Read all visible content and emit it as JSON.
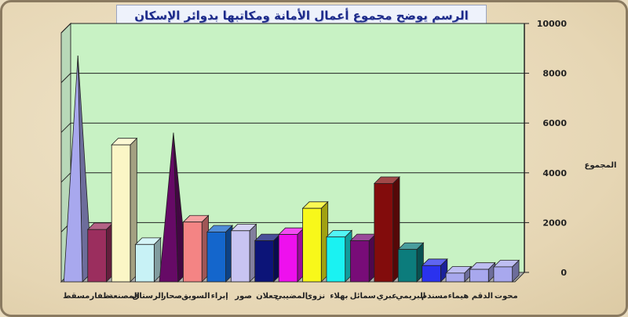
{
  "chart_data": {
    "type": "bar",
    "title": "الرسم يوضح مجموع أعمال الأمانة ومكاتبها بدوائر الإسكان بالمحافظات",
    "ylabel": "المجموع",
    "xlabel": "",
    "ylim": [
      0,
      10000
    ],
    "yticks": [
      0,
      2000,
      4000,
      6000,
      8000,
      10000
    ],
    "grid": true,
    "categories": [
      "مسقط",
      "ظفار",
      "المصنعة",
      "الرستاق",
      "صحار",
      "السويق",
      "إبراء",
      "صور",
      "جعلان",
      "المضيبي",
      "نزوى",
      "بهلاء",
      "سمائل",
      "عبري",
      "البريمي",
      "مسندم",
      "هيماء",
      "الدقم",
      "محوت"
    ],
    "values": [
      8900,
      2100,
      5500,
      1500,
      5800,
      2400,
      2000,
      2050,
      1650,
      1900,
      2950,
      1800,
      1650,
      3950,
      1300,
      650,
      350,
      500,
      600
    ],
    "shapes": [
      "pyramid",
      "box",
      "box",
      "box",
      "pyramid",
      "box",
      "box",
      "box",
      "box",
      "box",
      "box",
      "box",
      "box",
      "box",
      "box",
      "box",
      "box",
      "box",
      "box"
    ],
    "colors": [
      "#a8a8ee",
      "#9b2e5e",
      "#fbf6c6",
      "#c8f2f6",
      "#660a66",
      "#f48484",
      "#1466cc",
      "#c8c4f2",
      "#0c1478",
      "#ee10ee",
      "#f8f81a",
      "#1af2f2",
      "#780c78",
      "#820c0c",
      "#0c7c7c",
      "#2a32ee",
      "#a8a8ee",
      "#a8a8ee",
      "#a8a8ee"
    ]
  }
}
